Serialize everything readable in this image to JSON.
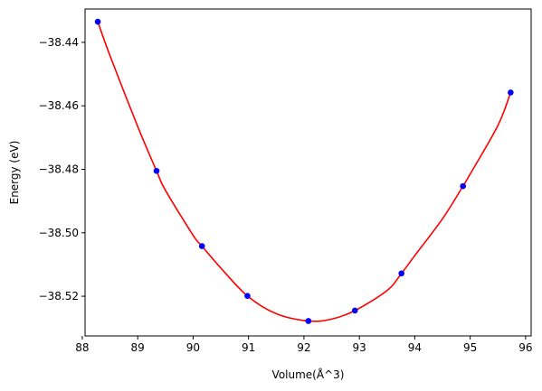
{
  "chart_data": {
    "type": "scatter",
    "title": "",
    "xlabel": "Volume(Å^3)",
    "ylabel": "Energy (eV)",
    "xlim": [
      88.05,
      96.1
    ],
    "ylim": [
      -38.5325,
      -38.4295
    ],
    "xticks": [
      88,
      89,
      90,
      91,
      92,
      93,
      94,
      95,
      96
    ],
    "xtick_labels": [
      "88",
      "89",
      "90",
      "91",
      "92",
      "93",
      "94",
      "95",
      "96"
    ],
    "yticks": [
      -38.44,
      -38.46,
      -38.48,
      -38.5,
      -38.52
    ],
    "ytick_labels": [
      "−38.44",
      "−38.46",
      "−38.48",
      "−38.50",
      "−38.52"
    ],
    "grid": false,
    "legend": "none",
    "series": [
      {
        "kind": "scatter",
        "color": "#0000ff",
        "x": [
          88.28,
          89.34,
          90.16,
          90.98,
          92.08,
          92.92,
          93.76,
          94.87,
          95.73
        ],
        "y": [
          -38.4335,
          -38.4805,
          -38.5042,
          -38.5199,
          -38.5278,
          -38.5245,
          -38.5128,
          -38.4853,
          -38.4558
        ]
      },
      {
        "kind": "fit-line",
        "color": "#ff0000",
        "x": [
          88.28,
          88.5,
          89.0,
          89.34,
          89.5,
          90.0,
          90.16,
          90.5,
          90.98,
          91.5,
          92.08,
          92.5,
          92.92,
          93.5,
          93.76,
          94.0,
          94.5,
          94.87,
          95.0,
          95.5,
          95.73
        ],
        "y": [
          -38.4335,
          -38.4442,
          -38.4665,
          -38.4805,
          -38.4866,
          -38.5008,
          -38.5042,
          -38.5111,
          -38.5199,
          -38.5255,
          -38.5278,
          -38.5272,
          -38.5245,
          -38.5182,
          -38.5128,
          -38.5072,
          -38.4956,
          -38.4853,
          -38.4815,
          -38.4662,
          -38.4558
        ]
      }
    ]
  }
}
